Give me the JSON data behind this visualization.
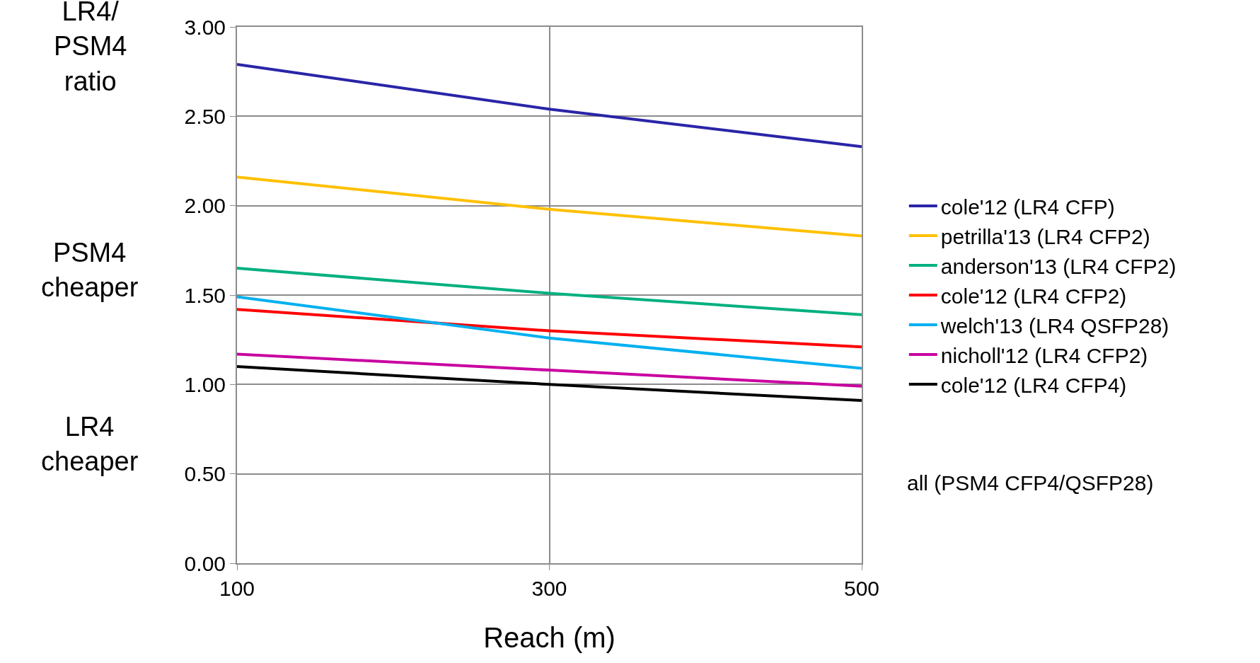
{
  "chart_data": {
    "type": "line",
    "xlabel": "Reach (m)",
    "ylabel": "LR4/\nPSM4\nratio",
    "x": [
      100,
      300,
      500
    ],
    "xlim": [
      100,
      500
    ],
    "xticks": [
      100,
      300,
      500
    ],
    "ylim": [
      0,
      3
    ],
    "yticks": [
      {
        "value": 0,
        "label": "0.00"
      },
      {
        "value": 0.5,
        "label": "0.50"
      },
      {
        "value": 1,
        "label": "1.00"
      },
      {
        "value": 1.5,
        "label": "1.50"
      },
      {
        "value": 2,
        "label": "2.00"
      },
      {
        "value": 2.5,
        "label": "2.50"
      },
      {
        "value": 3,
        "label": "3.00"
      }
    ],
    "grid": true,
    "legend": "right",
    "marker": "none",
    "line_style": "solid",
    "series": [
      {
        "name": "cole'12 (LR4 CFP)",
        "color": "#2a24a8",
        "values": [
          2.79,
          2.54,
          2.33
        ]
      },
      {
        "name": "petrilla'13 (LR4 CFP2)",
        "color": "#ffc000",
        "values": [
          2.16,
          1.98,
          1.83
        ]
      },
      {
        "name": "anderson'13 (LR4 CFP2)",
        "color": "#00b07f",
        "values": [
          1.65,
          1.51,
          1.39
        ]
      },
      {
        "name": "cole'12 (LR4 CFP2)",
        "color": "#ff0000",
        "values": [
          1.42,
          1.3,
          1.21
        ]
      },
      {
        "name": "welch'13 (LR4 QSFP28)",
        "color": "#00b0f0",
        "values": [
          1.49,
          1.26,
          1.09
        ]
      },
      {
        "name": "nicholl'12 (LR4 CFP2)",
        "color": "#c800a0",
        "values": [
          1.17,
          1.08,
          0.99
        ]
      },
      {
        "name": "cole'12 (LR4 CFP4)",
        "color": "#000000",
        "values": [
          1.1,
          1.0,
          0.91
        ]
      }
    ],
    "annotations": [
      "PSM4\ncheaper",
      "LR4\ncheaper",
      "all (PSM4 CFP4/QSFP28)"
    ]
  }
}
